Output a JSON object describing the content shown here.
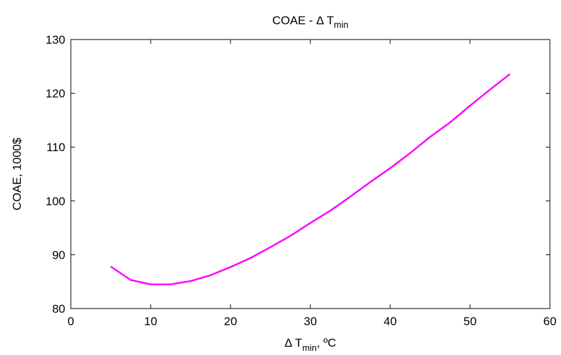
{
  "chart_data": {
    "type": "line",
    "title": {
      "main": "COAE - Δ T",
      "sub": "min"
    },
    "xlabel": {
      "pre": "Δ T",
      "sub": "min",
      "post": ", ºC"
    },
    "ylabel": "COAE, 1000$",
    "xlim": [
      0,
      60
    ],
    "ylim": [
      80,
      130
    ],
    "xticks": [
      0,
      10,
      20,
      30,
      40,
      50,
      60
    ],
    "yticks": [
      80,
      90,
      100,
      110,
      120,
      130
    ],
    "grid": false,
    "colors": {
      "line": "#ff00ff",
      "axis": "#000000",
      "background": "#ffffff"
    },
    "series": [
      {
        "x": [
          5,
          7.5,
          10,
          12.5,
          15,
          17.5,
          20,
          22.5,
          25,
          27.5,
          30,
          32.5,
          35,
          37.5,
          40,
          42.5,
          45,
          47.5,
          50,
          52.5,
          55
        ],
        "y": [
          87.8,
          85.3,
          84.5,
          84.5,
          85.1,
          86.2,
          87.7,
          89.4,
          91.4,
          93.5,
          95.9,
          98.2,
          100.8,
          103.5,
          106.1,
          108.9,
          111.9,
          114.6,
          117.7,
          120.7,
          123.6
        ]
      }
    ]
  }
}
